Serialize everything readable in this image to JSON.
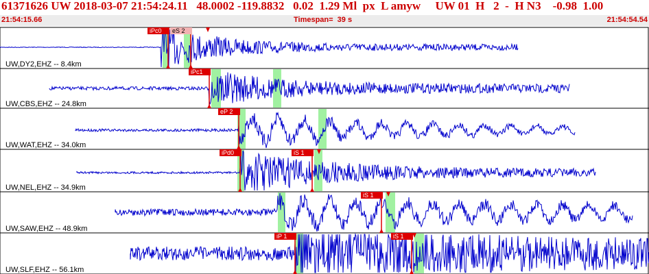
{
  "header": {
    "summary": "61371626 UW 2018-03-07 21:54:24.11   48.0002 -119.8832   0.02  1.29 Ml  px  L amyw     UW 01  H   2  -  H N3    -0.98  1.00",
    "start_time": "21:54:15.66",
    "timespan": "Timespan=  39 s",
    "end_time": "21:54:54.54"
  },
  "colors": {
    "trace": "#0000cc",
    "pick": "#dd0000",
    "pick_secondary": "#f2b2b2",
    "window": "#90ee90"
  },
  "traces": [
    {
      "label": "UW,DY2,EHZ -- 8.4km",
      "picks": [
        "iPc0",
        "eS 2"
      ]
    },
    {
      "label": "UW,CBS,EHZ -- 24.8km",
      "picks": [
        "iPc1"
      ]
    },
    {
      "label": "UW,WAT,EHZ -- 34.0km",
      "picks": [
        "eP 2"
      ]
    },
    {
      "label": "UW,NEL,EHZ -- 34.9km",
      "picks": [
        "iPd0",
        "iS 1"
      ]
    },
    {
      "label": "UW,SAW,EHZ -- 48.9km",
      "picks": [
        "iS 1"
      ]
    },
    {
      "label": "UW,SLF,EHZ -- 56.1km",
      "picks": [
        "iP 1",
        "iS 1"
      ]
    }
  ]
}
